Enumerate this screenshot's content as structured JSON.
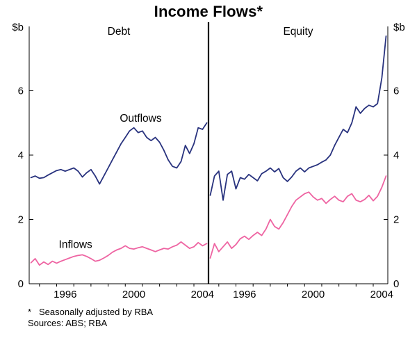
{
  "title": "Income Flows*",
  "footnote": {
    "marker": "*",
    "text": "Seasonally adjusted by RBA"
  },
  "sources": "Sources: ABS; RBA",
  "chart_data": {
    "type": "line",
    "unit_label_left": "$b",
    "unit_label_right": "$b",
    "ylim": [
      0,
      8
    ],
    "yticks": [
      0,
      2,
      4,
      6
    ],
    "xlim": [
      1994.4,
      2004.85
    ],
    "x_start": 1994.5,
    "x_step": 0.25,
    "xtick_years_labeled": [
      1996,
      2000,
      2004
    ],
    "grid": false,
    "legend_position": "inline-annotations",
    "colors": {
      "outflows": "#28327e",
      "inflows": "#ee64a2",
      "axis": "#000000"
    },
    "panels": [
      {
        "label": "Debt",
        "series": [
          {
            "name": "Outflows",
            "color_key": "outflows",
            "values": [
              3.3,
              3.35,
              3.28,
              3.3,
              3.38,
              3.45,
              3.52,
              3.55,
              3.5,
              3.55,
              3.6,
              3.5,
              3.32,
              3.45,
              3.55,
              3.35,
              3.1,
              3.35,
              3.6,
              3.85,
              4.1,
              4.35,
              4.55,
              4.75,
              4.85,
              4.7,
              4.75,
              4.55,
              4.45,
              4.55,
              4.4,
              4.15,
              3.85,
              3.65,
              3.6,
              3.8,
              4.3,
              4.05,
              4.35,
              4.85,
              4.8,
              5.0
            ]
          },
          {
            "name": "Inflows",
            "color_key": "inflows",
            "values": [
              0.65,
              0.78,
              0.58,
              0.68,
              0.6,
              0.7,
              0.64,
              0.7,
              0.75,
              0.8,
              0.85,
              0.88,
              0.9,
              0.85,
              0.78,
              0.7,
              0.73,
              0.8,
              0.88,
              0.98,
              1.05,
              1.1,
              1.18,
              1.1,
              1.08,
              1.12,
              1.15,
              1.1,
              1.05,
              1.0,
              1.05,
              1.1,
              1.08,
              1.15,
              1.2,
              1.3,
              1.2,
              1.1,
              1.15,
              1.28,
              1.18,
              1.25
            ]
          }
        ],
        "annotations": [
          {
            "text": "Outflows",
            "x": 2000.9,
            "y": 5.15,
            "color_key": "outflows"
          },
          {
            "text": "Inflows",
            "x": 1997.1,
            "y": 1.22,
            "color_key": "inflows"
          }
        ]
      },
      {
        "label": "Equity",
        "series": [
          {
            "name": "Outflows",
            "color_key": "outflows",
            "values": [
              2.75,
              3.35,
              3.5,
              2.6,
              3.4,
              3.5,
              2.95,
              3.3,
              3.25,
              3.4,
              3.3,
              3.2,
              3.42,
              3.5,
              3.6,
              3.48,
              3.58,
              3.3,
              3.18,
              3.32,
              3.5,
              3.6,
              3.48,
              3.6,
              3.65,
              3.7,
              3.78,
              3.85,
              4.0,
              4.3,
              4.55,
              4.8,
              4.7,
              5.0,
              5.5,
              5.3,
              5.45,
              5.55,
              5.5,
              5.6,
              6.4,
              7.7
            ]
          },
          {
            "name": "Inflows",
            "color_key": "inflows",
            "values": [
              0.8,
              1.25,
              1.0,
              1.15,
              1.3,
              1.1,
              1.22,
              1.4,
              1.48,
              1.38,
              1.5,
              1.6,
              1.5,
              1.7,
              2.0,
              1.78,
              1.7,
              1.9,
              2.15,
              2.4,
              2.6,
              2.7,
              2.8,
              2.85,
              2.7,
              2.6,
              2.65,
              2.5,
              2.62,
              2.72,
              2.6,
              2.55,
              2.72,
              2.8,
              2.6,
              2.55,
              2.62,
              2.75,
              2.58,
              2.72,
              3.0,
              3.35
            ]
          }
        ],
        "annotations": []
      }
    ]
  }
}
